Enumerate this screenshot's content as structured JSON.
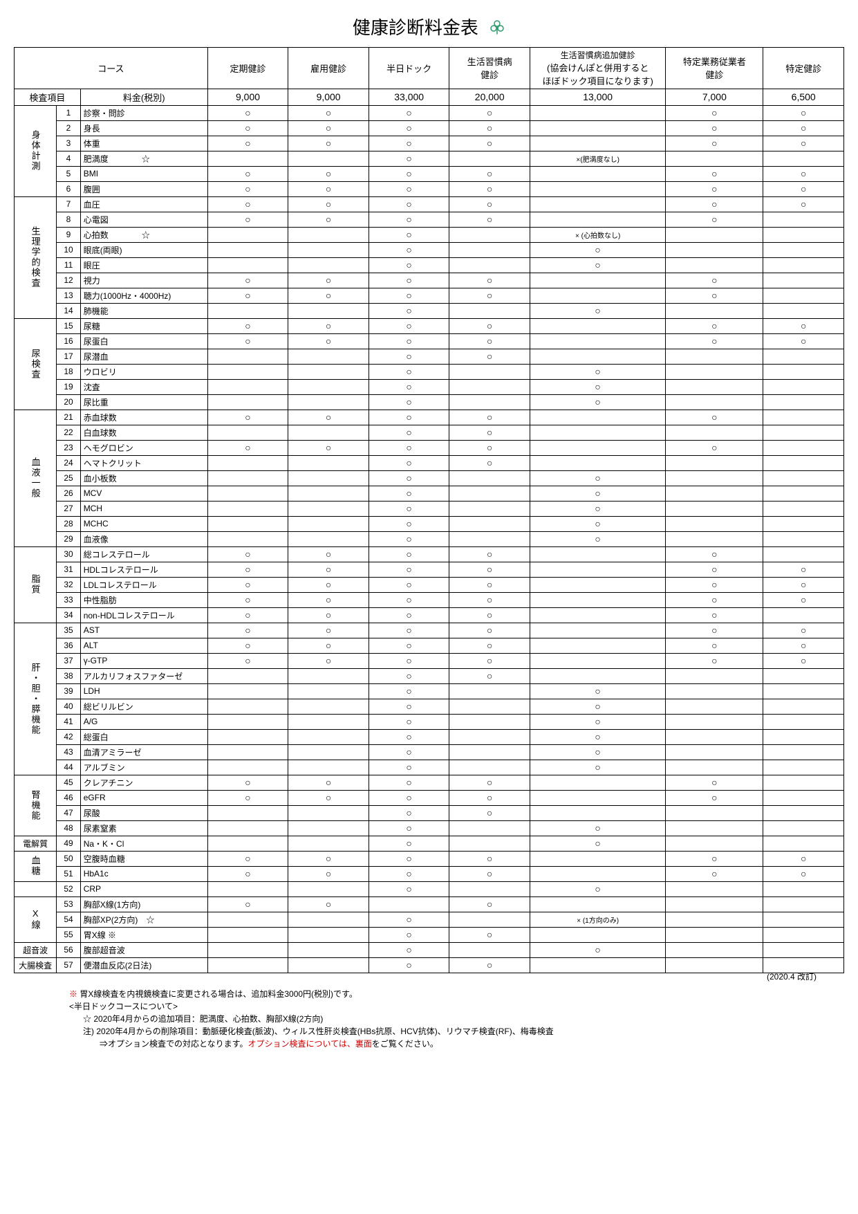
{
  "title": "健康診断料金表",
  "colors": {
    "text": "#000000",
    "bg": "#ffffff",
    "accent_red": "#d00000",
    "icon_green": "#2e9b6e"
  },
  "header": {
    "course_label": "コース",
    "exam_item_label": "検査項目",
    "price_label": "料金(税別)"
  },
  "plans": [
    {
      "name": "定期健診",
      "price": "9,000",
      "sub": ""
    },
    {
      "name": "雇用健診",
      "price": "9,000",
      "sub": ""
    },
    {
      "name": "半日ドック",
      "price": "33,000",
      "sub": ""
    },
    {
      "name": "生活習慣病\n健診",
      "price": "20,000",
      "sub": ""
    },
    {
      "name": "生活習慣病追加健診",
      "price": "13,000",
      "sub": "(協会けんぽと併用すると\nほぼドック項目になります)"
    },
    {
      "name": "特定業務従業者\n健診",
      "price": "7,000",
      "sub": ""
    },
    {
      "name": "特定健診",
      "price": "6,500",
      "sub": ""
    }
  ],
  "categories": [
    {
      "label": "身体計測",
      "vertical": true,
      "rows": [
        {
          "n": 1,
          "name": "診察・問診",
          "marks": [
            "○",
            "○",
            "○",
            "○",
            "",
            "○",
            "○"
          ]
        },
        {
          "n": 2,
          "name": "身長",
          "marks": [
            "○",
            "○",
            "○",
            "○",
            "",
            "○",
            "○"
          ]
        },
        {
          "n": 3,
          "name": "体重",
          "marks": [
            "○",
            "○",
            "○",
            "○",
            "",
            "○",
            "○"
          ]
        },
        {
          "n": 4,
          "name": "肥満度　　　　☆",
          "marks": [
            "",
            "",
            "○",
            "",
            "×(肥満度なし)",
            "",
            ""
          ]
        },
        {
          "n": 5,
          "name": "BMI",
          "marks": [
            "○",
            "○",
            "○",
            "○",
            "",
            "○",
            "○"
          ]
        },
        {
          "n": 6,
          "name": "腹囲",
          "marks": [
            "○",
            "○",
            "○",
            "○",
            "",
            "○",
            "○"
          ]
        }
      ]
    },
    {
      "label": "生理学的検査",
      "vertical": true,
      "rows": [
        {
          "n": 7,
          "name": "血圧",
          "marks": [
            "○",
            "○",
            "○",
            "○",
            "",
            "○",
            "○"
          ]
        },
        {
          "n": 8,
          "name": "心電図",
          "marks": [
            "○",
            "○",
            "○",
            "○",
            "",
            "○",
            ""
          ]
        },
        {
          "n": 9,
          "name": "心拍数　　　　☆",
          "marks": [
            "",
            "",
            "○",
            "",
            "× (心拍数なし)",
            "",
            ""
          ]
        },
        {
          "n": 10,
          "name": "眼底(両眼)",
          "marks": [
            "",
            "",
            "○",
            "",
            "○",
            "",
            ""
          ]
        },
        {
          "n": 11,
          "name": "眼圧",
          "marks": [
            "",
            "",
            "○",
            "",
            "○",
            "",
            ""
          ]
        },
        {
          "n": 12,
          "name": "視力",
          "marks": [
            "○",
            "○",
            "○",
            "○",
            "",
            "○",
            ""
          ]
        },
        {
          "n": 13,
          "name": "聴力(1000Hz・4000Hz)",
          "marks": [
            "○",
            "○",
            "○",
            "○",
            "",
            "○",
            ""
          ]
        },
        {
          "n": 14,
          "name": "肺機能",
          "marks": [
            "",
            "",
            "○",
            "",
            "○",
            "",
            ""
          ]
        }
      ]
    },
    {
      "label": "尿検査",
      "vertical": true,
      "rows": [
        {
          "n": 15,
          "name": "尿糖",
          "marks": [
            "○",
            "○",
            "○",
            "○",
            "",
            "○",
            "○"
          ]
        },
        {
          "n": 16,
          "name": "尿蛋白",
          "marks": [
            "○",
            "○",
            "○",
            "○",
            "",
            "○",
            "○"
          ]
        },
        {
          "n": 17,
          "name": "尿潜血",
          "marks": [
            "",
            "",
            "○",
            "○",
            "",
            "",
            ""
          ]
        },
        {
          "n": 18,
          "name": "ウロビリ",
          "marks": [
            "",
            "",
            "○",
            "",
            "○",
            "",
            ""
          ]
        },
        {
          "n": 19,
          "name": "沈査",
          "marks": [
            "",
            "",
            "○",
            "",
            "○",
            "",
            ""
          ]
        },
        {
          "n": 20,
          "name": "尿比重",
          "marks": [
            "",
            "",
            "○",
            "",
            "○",
            "",
            ""
          ]
        }
      ]
    },
    {
      "label": "血液一般",
      "vertical": true,
      "rows": [
        {
          "n": 21,
          "name": "赤血球数",
          "marks": [
            "○",
            "○",
            "○",
            "○",
            "",
            "○",
            ""
          ]
        },
        {
          "n": 22,
          "name": "白血球数",
          "marks": [
            "",
            "",
            "○",
            "○",
            "",
            "",
            ""
          ]
        },
        {
          "n": 23,
          "name": "ヘモグロビン",
          "marks": [
            "○",
            "○",
            "○",
            "○",
            "",
            "○",
            ""
          ]
        },
        {
          "n": 24,
          "name": "ヘマトクリット",
          "marks": [
            "",
            "",
            "○",
            "○",
            "",
            "",
            ""
          ]
        },
        {
          "n": 25,
          "name": "血小板数",
          "marks": [
            "",
            "",
            "○",
            "",
            "○",
            "",
            ""
          ]
        },
        {
          "n": 26,
          "name": "MCV",
          "marks": [
            "",
            "",
            "○",
            "",
            "○",
            "",
            ""
          ]
        },
        {
          "n": 27,
          "name": "MCH",
          "marks": [
            "",
            "",
            "○",
            "",
            "○",
            "",
            ""
          ]
        },
        {
          "n": 28,
          "name": "MCHC",
          "marks": [
            "",
            "",
            "○",
            "",
            "○",
            "",
            ""
          ]
        },
        {
          "n": 29,
          "name": "血液像",
          "marks": [
            "",
            "",
            "○",
            "",
            "○",
            "",
            ""
          ]
        }
      ]
    },
    {
      "label": "脂質",
      "vertical": true,
      "rows": [
        {
          "n": 30,
          "name": "総コレステロール",
          "marks": [
            "○",
            "○",
            "○",
            "○",
            "",
            "○",
            ""
          ]
        },
        {
          "n": 31,
          "name": "HDLコレステロール",
          "marks": [
            "○",
            "○",
            "○",
            "○",
            "",
            "○",
            "○"
          ]
        },
        {
          "n": 32,
          "name": "LDLコレステロール",
          "marks": [
            "○",
            "○",
            "○",
            "○",
            "",
            "○",
            "○"
          ]
        },
        {
          "n": 33,
          "name": "中性脂肪",
          "marks": [
            "○",
            "○",
            "○",
            "○",
            "",
            "○",
            "○"
          ]
        },
        {
          "n": 34,
          "name": "non-HDLコレステロール",
          "marks": [
            "○",
            "○",
            "○",
            "○",
            "",
            "○",
            ""
          ]
        }
      ]
    },
    {
      "label": "肝・胆・膵機能",
      "vertical": true,
      "rows": [
        {
          "n": 35,
          "name": "AST",
          "marks": [
            "○",
            "○",
            "○",
            "○",
            "",
            "○",
            "○"
          ]
        },
        {
          "n": 36,
          "name": "ALT",
          "marks": [
            "○",
            "○",
            "○",
            "○",
            "",
            "○",
            "○"
          ]
        },
        {
          "n": 37,
          "name": "γ-GTP",
          "marks": [
            "○",
            "○",
            "○",
            "○",
            "",
            "○",
            "○"
          ]
        },
        {
          "n": 38,
          "name": "アルカリフォスファターゼ",
          "marks": [
            "",
            "",
            "○",
            "○",
            "",
            "",
            ""
          ]
        },
        {
          "n": 39,
          "name": "LDH",
          "marks": [
            "",
            "",
            "○",
            "",
            "○",
            "",
            ""
          ]
        },
        {
          "n": 40,
          "name": "総ビリルビン",
          "marks": [
            "",
            "",
            "○",
            "",
            "○",
            "",
            ""
          ]
        },
        {
          "n": 41,
          "name": "A/G",
          "marks": [
            "",
            "",
            "○",
            "",
            "○",
            "",
            ""
          ]
        },
        {
          "n": 42,
          "name": "総蛋白",
          "marks": [
            "",
            "",
            "○",
            "",
            "○",
            "",
            ""
          ]
        },
        {
          "n": 43,
          "name": "血清アミラーゼ",
          "marks": [
            "",
            "",
            "○",
            "",
            "○",
            "",
            ""
          ]
        },
        {
          "n": 44,
          "name": "アルブミン",
          "marks": [
            "",
            "",
            "○",
            "",
            "○",
            "",
            ""
          ]
        }
      ]
    },
    {
      "label": "腎機能",
      "vertical": true,
      "rows": [
        {
          "n": 45,
          "name": "クレアチニン",
          "marks": [
            "○",
            "○",
            "○",
            "○",
            "",
            "○",
            ""
          ]
        },
        {
          "n": 46,
          "name": "eGFR",
          "marks": [
            "○",
            "○",
            "○",
            "○",
            "",
            "○",
            ""
          ]
        },
        {
          "n": 47,
          "name": "尿酸",
          "marks": [
            "",
            "",
            "○",
            "○",
            "",
            "",
            ""
          ]
        },
        {
          "n": 48,
          "name": "尿素窒素",
          "marks": [
            "",
            "",
            "○",
            "",
            "○",
            "",
            ""
          ]
        }
      ]
    },
    {
      "label": "電解質",
      "vertical": false,
      "rows": [
        {
          "n": 49,
          "name": "Na・K・Cl",
          "marks": [
            "",
            "",
            "○",
            "",
            "○",
            "",
            ""
          ]
        }
      ]
    },
    {
      "label": "血糖",
      "vertical": true,
      "rows": [
        {
          "n": 50,
          "name": "空腹時血糖",
          "marks": [
            "○",
            "○",
            "○",
            "○",
            "",
            "○",
            "○"
          ]
        },
        {
          "n": 51,
          "name": "HbA1c",
          "marks": [
            "○",
            "○",
            "○",
            "○",
            "",
            "○",
            "○"
          ]
        }
      ]
    },
    {
      "label": "",
      "vertical": false,
      "rows": [
        {
          "n": 52,
          "name": "CRP",
          "marks": [
            "",
            "",
            "○",
            "",
            "○",
            "",
            ""
          ]
        }
      ]
    },
    {
      "label": "X線",
      "vertical": true,
      "rows": [
        {
          "n": 53,
          "name": "胸部X線(1方向)",
          "marks": [
            "○",
            "○",
            "",
            "○",
            "",
            "",
            ""
          ]
        },
        {
          "n": 54,
          "name": "胸部XP(2方向)　☆",
          "marks": [
            "",
            "",
            "○",
            "",
            "× (1方向のみ)",
            "",
            ""
          ]
        },
        {
          "n": 55,
          "name": "胃X線 <span class='red'>※</span>",
          "marks": [
            "",
            "",
            "○",
            "○",
            "",
            "",
            ""
          ]
        }
      ]
    },
    {
      "label": "超音波",
      "vertical": false,
      "rows": [
        {
          "n": 56,
          "name": "腹部超音波",
          "marks": [
            "",
            "",
            "○",
            "",
            "○",
            "",
            ""
          ]
        }
      ]
    },
    {
      "label": "大腸検査",
      "vertical": false,
      "rows": [
        {
          "n": 57,
          "name": "便潜血反応(2日法)",
          "marks": [
            "",
            "",
            "○",
            "○",
            "",
            "",
            ""
          ]
        }
      ]
    }
  ],
  "footnotes": {
    "line1_sym": "※",
    "line1": "胃X線検査を内視鏡検査に変更される場合は、追加料金3000円(税別)です。",
    "line2": "<半日ドックコースについて>",
    "line3_sym": "☆",
    "line3": "2020年4月からの追加項目：肥満度、心拍数、胸部X線(2方向)",
    "line4_sym": "注)",
    "line4a": "2020年4月からの削除項目：動脈硬化検査(脈波)、ウィルス性肝炎検査(HBs抗原、HCV抗体)、リウマチ検査(RF)、梅毒検査",
    "line4b": "⇒オプション検査での対応となります。",
    "line4b_red": "オプション検査については、裏面",
    "line4b_tail": "をご覧ください。"
  },
  "revision": "(2020.4 改訂)"
}
